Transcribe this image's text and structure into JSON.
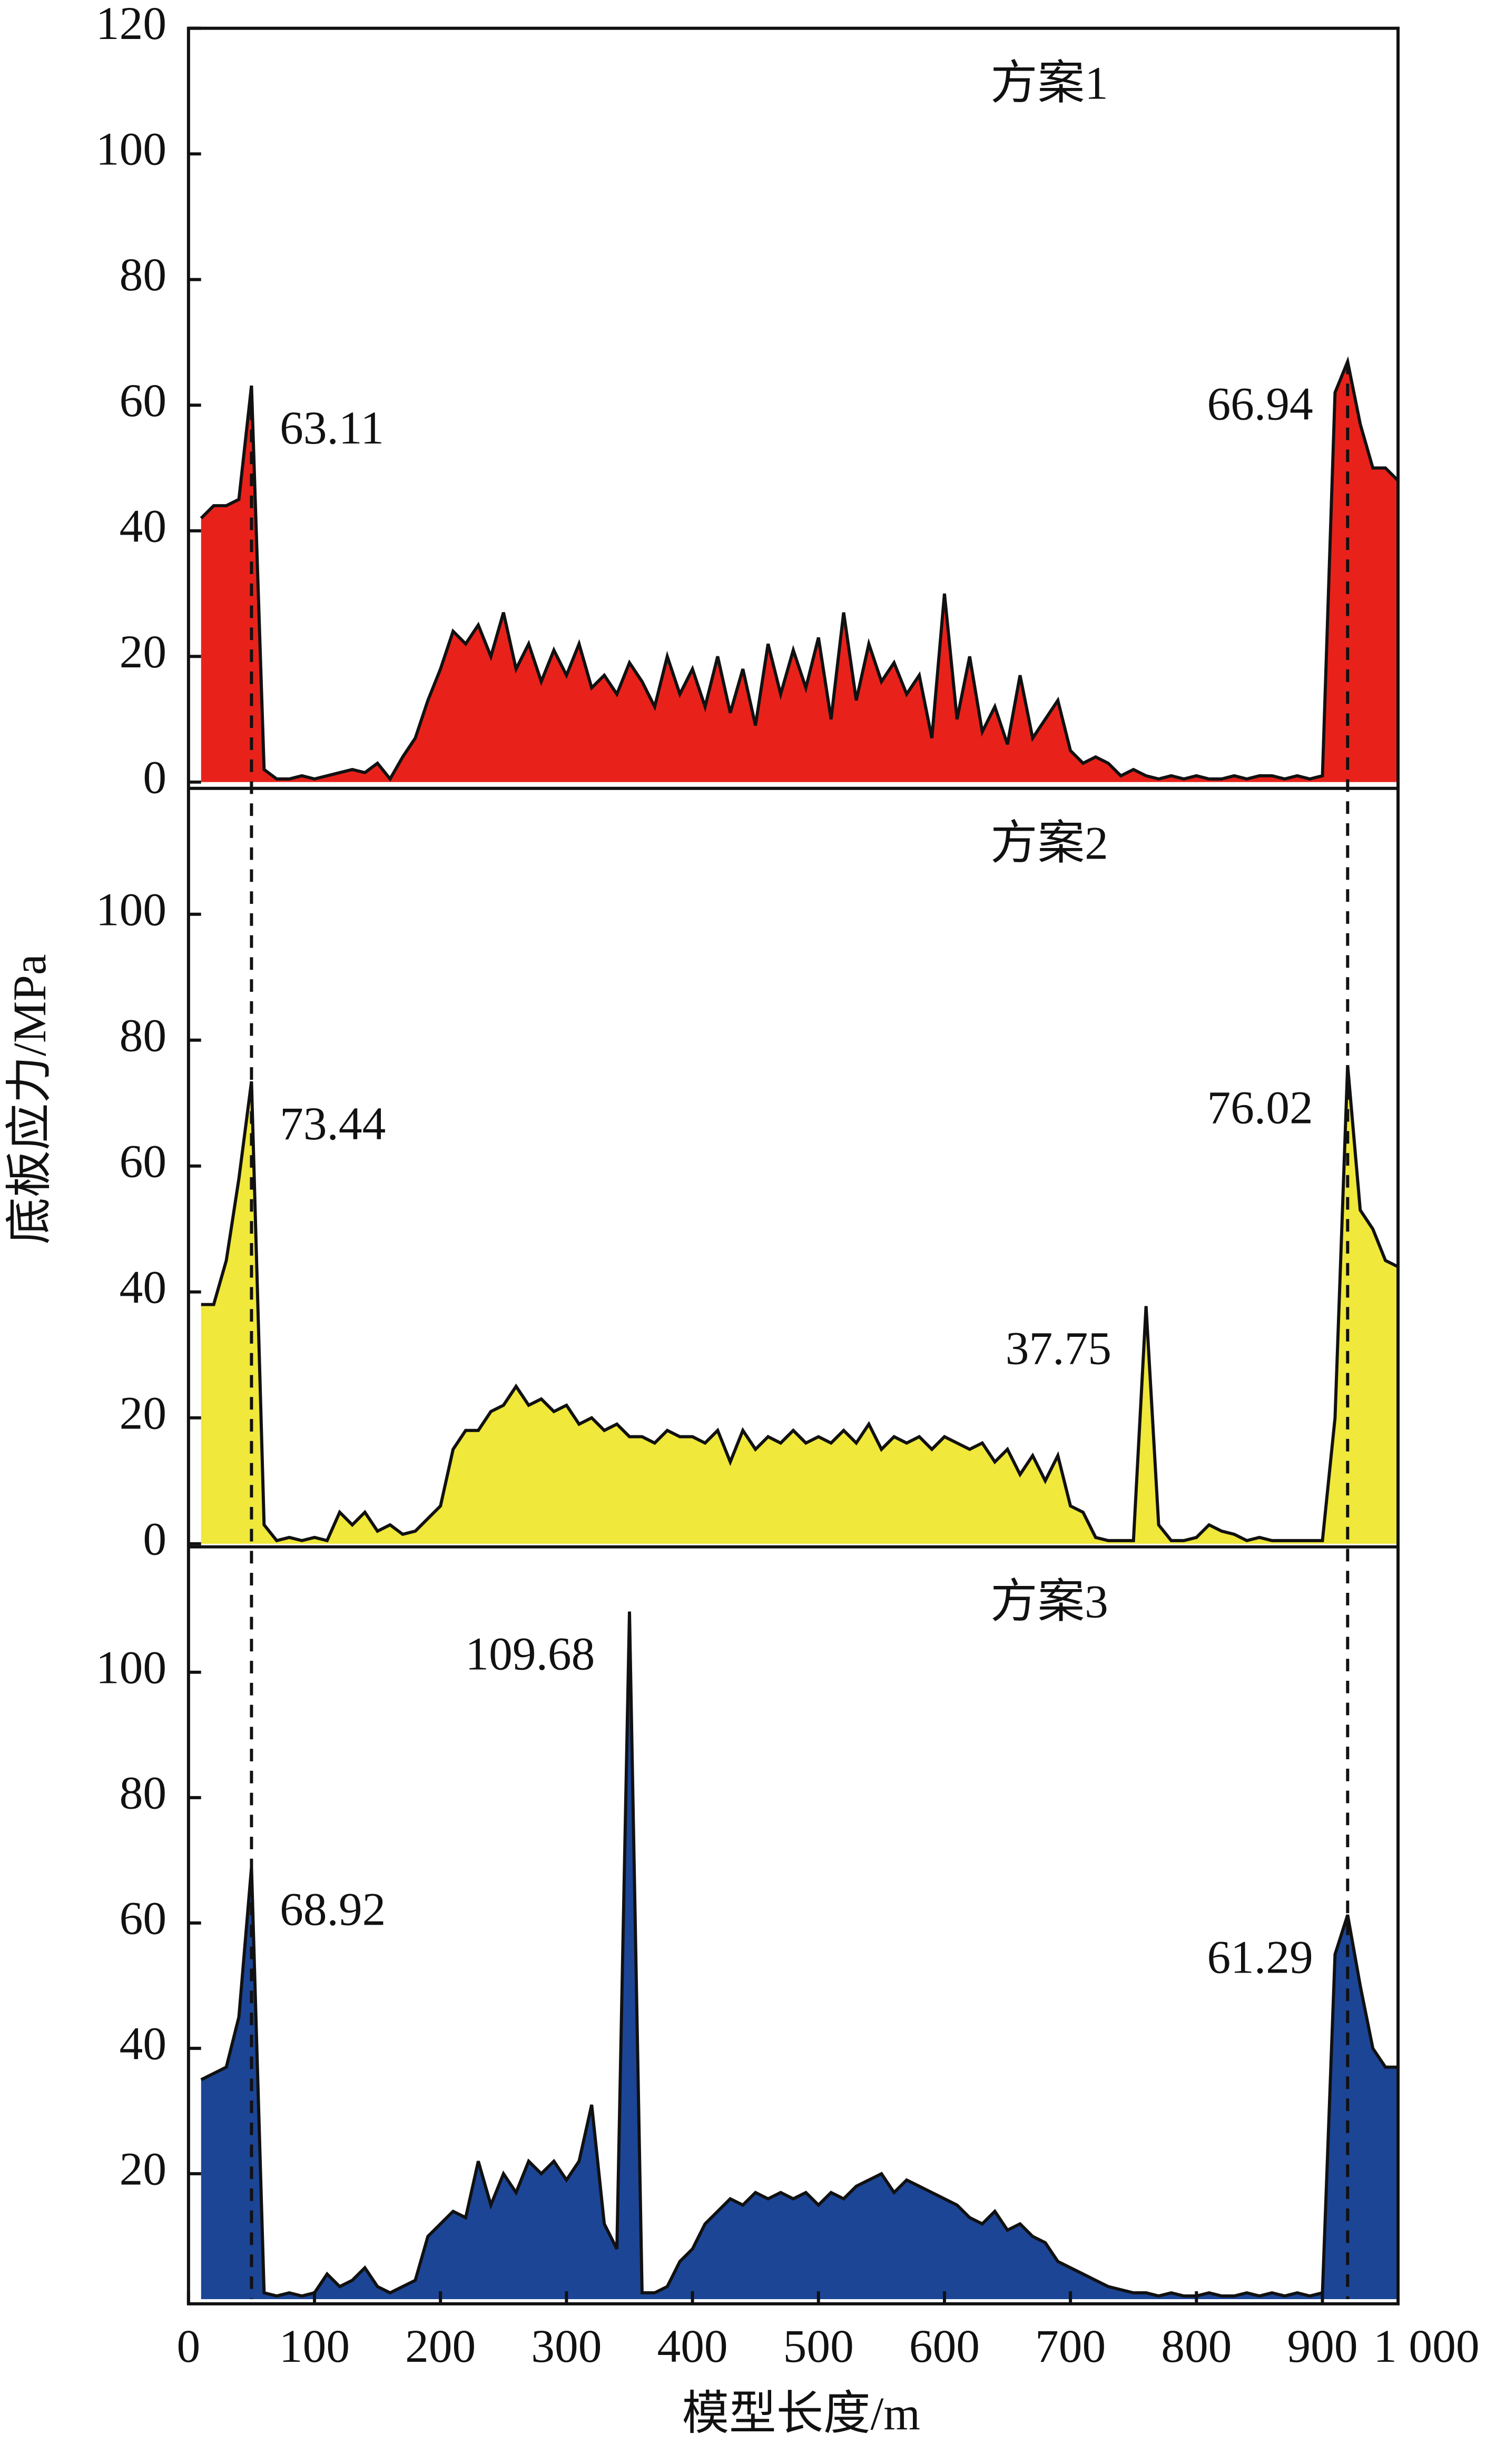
{
  "chart_data": [
    {
      "type": "area",
      "title": "方案1",
      "color": "#e8221b",
      "x": [
        10,
        20,
        30,
        40,
        50,
        60,
        70,
        80,
        90,
        100,
        110,
        120,
        130,
        140,
        150,
        160,
        170,
        180,
        190,
        200,
        210,
        220,
        230,
        240,
        250,
        260,
        270,
        280,
        290,
        300,
        310,
        320,
        330,
        340,
        350,
        360,
        370,
        380,
        390,
        400,
        410,
        420,
        430,
        440,
        450,
        460,
        470,
        480,
        490,
        500,
        510,
        520,
        530,
        540,
        550,
        560,
        570,
        580,
        590,
        600,
        610,
        620,
        630,
        640,
        650,
        660,
        670,
        680,
        690,
        700,
        710,
        720,
        730,
        740,
        750,
        760,
        770,
        780,
        790,
        800,
        810,
        820,
        830,
        840,
        850,
        860,
        870,
        880,
        890,
        900,
        910,
        920,
        930,
        940,
        950,
        960
      ],
      "values": [
        42,
        44,
        44,
        45,
        63.11,
        2,
        0.5,
        0.5,
        1,
        0.5,
        1,
        1.5,
        2,
        1.5,
        3,
        0.5,
        4,
        7,
        13,
        18,
        24,
        22,
        25,
        20,
        27,
        18,
        22,
        16,
        21,
        17,
        22,
        15,
        17,
        14,
        19,
        16,
        12,
        20,
        14,
        18,
        12,
        20,
        11,
        18,
        9,
        22,
        14,
        21,
        15,
        23,
        10,
        27,
        13,
        22,
        16,
        19,
        14,
        17,
        7,
        30,
        10,
        20,
        8,
        12,
        6,
        17,
        7,
        10,
        13,
        5,
        3,
        4,
        3,
        1,
        2,
        1,
        0.5,
        1,
        0.5,
        1,
        0.5,
        0.5,
        1,
        0.5,
        1,
        1,
        0.5,
        1,
        0.5,
        1,
        62,
        66.94,
        57,
        50,
        50,
        48
      ],
      "annotations": [
        "63.11",
        "66.94"
      ],
      "xlim": [
        0,
        960
      ],
      "ylim": [
        0,
        120
      ],
      "yticks": [
        0,
        20,
        40,
        60,
        80,
        100,
        120
      ]
    },
    {
      "type": "area",
      "title": "方案2",
      "color": "#f0e83a",
      "ylabel": "底板应力/MPa",
      "x": [
        10,
        20,
        30,
        40,
        50,
        60,
        70,
        80,
        90,
        100,
        110,
        120,
        130,
        140,
        150,
        160,
        170,
        180,
        190,
        200,
        210,
        220,
        230,
        240,
        250,
        260,
        270,
        280,
        290,
        300,
        310,
        320,
        330,
        340,
        350,
        360,
        370,
        380,
        390,
        400,
        410,
        420,
        430,
        440,
        450,
        460,
        470,
        480,
        490,
        500,
        510,
        520,
        530,
        540,
        550,
        560,
        570,
        580,
        590,
        600,
        610,
        620,
        630,
        640,
        650,
        660,
        670,
        680,
        690,
        700,
        710,
        720,
        730,
        740,
        750,
        760,
        770,
        780,
        790,
        800,
        810,
        820,
        830,
        840,
        850,
        860,
        870,
        880,
        890,
        900,
        910,
        920,
        930,
        940,
        950,
        960
      ],
      "values": [
        38,
        38,
        45,
        58,
        73.44,
        3,
        0.5,
        1,
        0.5,
        1,
        0.5,
        5,
        3,
        5,
        2,
        3,
        1.5,
        2,
        4,
        6,
        15,
        18,
        18,
        21,
        22,
        25,
        22,
        23,
        21,
        22,
        19,
        20,
        18,
        19,
        17,
        17,
        16,
        18,
        17,
        17,
        16,
        18,
        13,
        18,
        15,
        17,
        16,
        18,
        16,
        17,
        16,
        18,
        16,
        19,
        15,
        17,
        16,
        17,
        15,
        17,
        16,
        15,
        16,
        13,
        15,
        11,
        14,
        10,
        14,
        6,
        5,
        1,
        0.5,
        0.5,
        0.5,
        37.75,
        3,
        0.5,
        0.5,
        1,
        3,
        2,
        1.5,
        0.5,
        1,
        0.5,
        0.5,
        0.5,
        0.5,
        0.5,
        20,
        76.02,
        53,
        50,
        45,
        44
      ],
      "annotations": [
        "73.44",
        "37.75",
        "76.02"
      ],
      "xlim": [
        0,
        960
      ],
      "ylim": [
        0,
        120
      ],
      "yticks": [
        0,
        20,
        40,
        60,
        80,
        100
      ]
    },
    {
      "type": "area",
      "title": "方案3",
      "color": "#1c4596",
      "xlabel": "模型长度/m",
      "x": [
        10,
        20,
        30,
        40,
        50,
        60,
        70,
        80,
        90,
        100,
        110,
        120,
        130,
        140,
        150,
        160,
        170,
        180,
        190,
        200,
        210,
        220,
        230,
        240,
        250,
        260,
        270,
        280,
        290,
        300,
        310,
        320,
        330,
        340,
        350,
        360,
        370,
        380,
        390,
        400,
        410,
        420,
        430,
        440,
        450,
        460,
        470,
        480,
        490,
        500,
        510,
        520,
        530,
        540,
        550,
        560,
        570,
        580,
        590,
        600,
        610,
        620,
        630,
        640,
        650,
        660,
        670,
        680,
        690,
        700,
        710,
        720,
        730,
        740,
        750,
        760,
        770,
        780,
        790,
        800,
        810,
        820,
        830,
        840,
        850,
        860,
        870,
        880,
        890,
        900,
        910,
        920,
        930,
        940,
        950,
        960
      ],
      "values": [
        35,
        36,
        37,
        45,
        68.92,
        1,
        0.5,
        1,
        0.5,
        1,
        4,
        2,
        3,
        5,
        2,
        1,
        2,
        3,
        10,
        12,
        14,
        13,
        22,
        15,
        20,
        17,
        22,
        20,
        22,
        19,
        22,
        31,
        12,
        8,
        109.68,
        1,
        1,
        2,
        6,
        8,
        12,
        14,
        16,
        15,
        17,
        16,
        17,
        16,
        17,
        15,
        17,
        16,
        18,
        19,
        20,
        17,
        19,
        18,
        17,
        16,
        15,
        13,
        12,
        14,
        11,
        12,
        10,
        9,
        6,
        5,
        4,
        3,
        2,
        1.5,
        1,
        1,
        0.5,
        1,
        0.5,
        0.5,
        1,
        0.5,
        0.5,
        1,
        0.5,
        1,
        0.5,
        1,
        0.5,
        1,
        55,
        61.29,
        50,
        40,
        37,
        37
      ],
      "annotations": [
        "68.92",
        "109.68",
        "61.29"
      ],
      "xlim": [
        0,
        960
      ],
      "ylim": [
        0,
        120
      ],
      "yticks": [
        20,
        40,
        60,
        80,
        100
      ],
      "xticks": [
        0,
        100,
        200,
        300,
        400,
        500,
        600,
        700,
        800,
        900,
        {
          "value": 1000,
          "label": "1 000"
        }
      ]
    }
  ]
}
